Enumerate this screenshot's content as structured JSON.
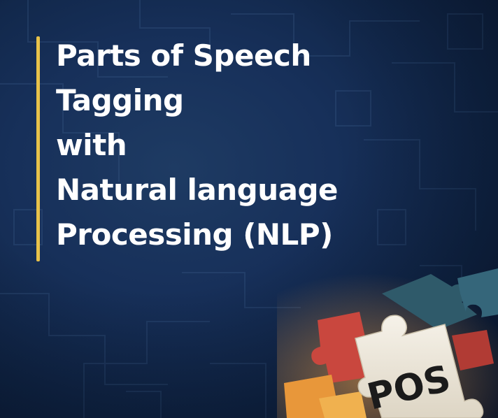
{
  "title_lines": [
    "Parts of Speech",
    "Tagging",
    "with",
    "Natural language",
    "Processing (NLP)"
  ],
  "puzzle_label": "POS",
  "colors": {
    "background": "#17305a",
    "accent_bar": "#e8c24a",
    "title_text": "#ffffff",
    "puzzle_piece": "#ece6d8",
    "puzzle_red": "#c9473e",
    "puzzle_orange": "#e8973a",
    "puzzle_teal": "#2f5a6a",
    "label_text": "#1b1b1b"
  }
}
